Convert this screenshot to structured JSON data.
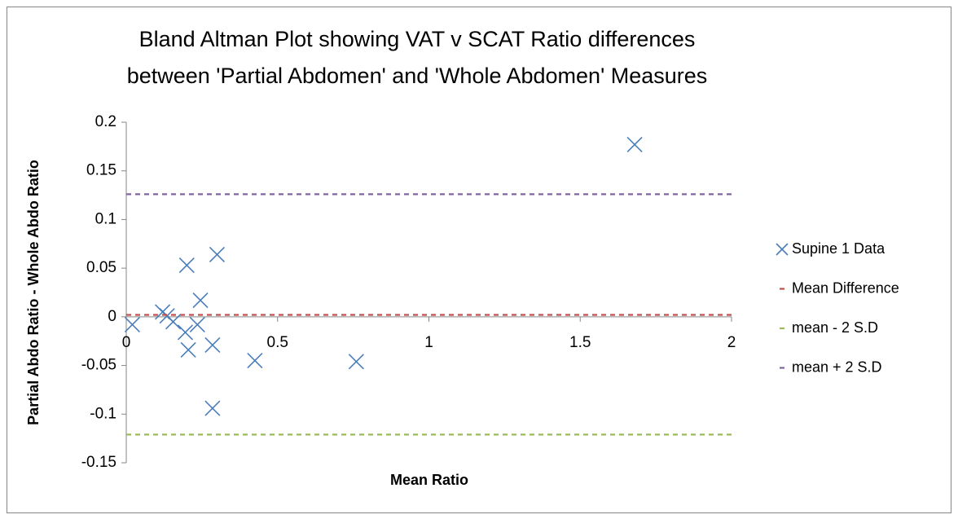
{
  "chart_data": {
    "type": "scatter",
    "title": [
      "Bland Altman Plot showing VAT v SCAT Ratio differences",
      "between 'Partial Abdomen' and 'Whole Abdomen' Measures"
    ],
    "x_label": "Mean Ratio",
    "y_label": "Partial Abdo Ratio - Whole  Abdo Ratio",
    "xlim": [
      0,
      2
    ],
    "xticks": [
      0,
      0.5,
      1,
      1.5,
      2
    ],
    "ylim": [
      -0.15,
      0.2
    ],
    "yticks": [
      0.2,
      0.15,
      0.1,
      0.05,
      0,
      -0.05,
      -0.1,
      -0.15
    ],
    "legend": "right",
    "series": [
      {
        "name": "Supine 1 Data",
        "color": "#4a7ebb",
        "mode": "markers",
        "x": [
          0.02,
          0.12,
          0.135,
          0.155,
          0.195,
          0.2,
          0.205,
          0.235,
          0.245,
          0.285,
          0.285,
          0.3,
          0.425,
          0.76,
          1.68
        ],
        "values": [
          -0.008,
          0.005,
          0.001,
          -0.005,
          -0.016,
          0.053,
          -0.034,
          -0.008,
          0.017,
          -0.029,
          -0.094,
          0.064,
          -0.045,
          -0.046,
          0.177
        ]
      },
      {
        "name": "Mean Difference",
        "color": "#c0504d",
        "mode": "dashed-line",
        "x": [
          0,
          2
        ],
        "values": [
          0.002,
          0.002
        ]
      },
      {
        "name": "mean - 2 S.D",
        "color": "#9bbb59",
        "mode": "dashed-line",
        "x": [
          0,
          2
        ],
        "values": [
          -0.121,
          -0.121
        ]
      },
      {
        "name": "mean + 2 S.D",
        "color": "#8064a2",
        "mode": "dashed-line",
        "x": [
          0,
          2
        ],
        "values": [
          0.126,
          0.126
        ]
      }
    ]
  }
}
